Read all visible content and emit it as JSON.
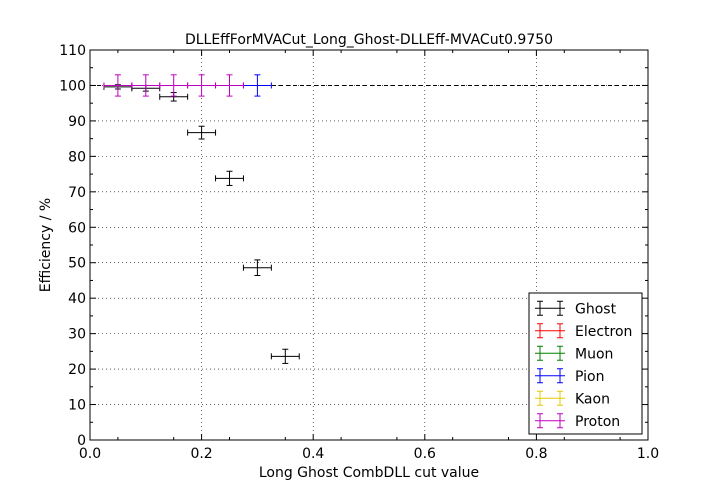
{
  "chart_data": {
    "type": "scatter",
    "title": "DLLEffForMVACut_Long_Ghost-DLLEff-MVACut0.9750",
    "xlabel": "Long Ghost CombDLL cut value",
    "ylabel": "Efficiency / %",
    "xlim": [
      0.0,
      1.0
    ],
    "ylim": [
      0,
      110
    ],
    "x_ticks": [
      "0.0",
      "0.2",
      "0.4",
      "0.6",
      "0.8",
      "1.0"
    ],
    "y_ticks": [
      "0",
      "10",
      "20",
      "30",
      "40",
      "50",
      "60",
      "70",
      "80",
      "90",
      "100",
      "110"
    ],
    "grid": true,
    "reference_line": 100,
    "legend_position": "lower-right",
    "x_error": 0.025,
    "series": [
      {
        "name": "Ghost",
        "color": "#000000",
        "x": [
          0.05,
          0.1,
          0.15,
          0.2,
          0.25,
          0.3,
          0.35
        ],
        "y": [
          99.6,
          99.2,
          96.8,
          86.7,
          73.8,
          48.6,
          23.6
        ],
        "yerr": [
          0.6,
          0.8,
          1.2,
          1.8,
          2.0,
          2.2,
          2.0
        ]
      },
      {
        "name": "Electron",
        "color": "#ff0000",
        "x": [],
        "y": [],
        "yerr": []
      },
      {
        "name": "Muon",
        "color": "#008000",
        "x": [],
        "y": [],
        "yerr": []
      },
      {
        "name": "Pion",
        "color": "#0000ff",
        "x": [
          0.3
        ],
        "y": [
          100.0
        ],
        "yerr": [
          3.0
        ]
      },
      {
        "name": "Kaon",
        "color": "#e6c800",
        "x": [],
        "y": [],
        "yerr": []
      },
      {
        "name": "Proton",
        "color": "#bf00bf",
        "x": [
          0.05,
          0.1,
          0.15,
          0.2,
          0.25
        ],
        "y": [
          100.0,
          100.0,
          100.0,
          100.0,
          100.0
        ],
        "yerr": [
          3.0,
          3.0,
          3.0,
          3.0,
          3.0
        ]
      }
    ]
  }
}
